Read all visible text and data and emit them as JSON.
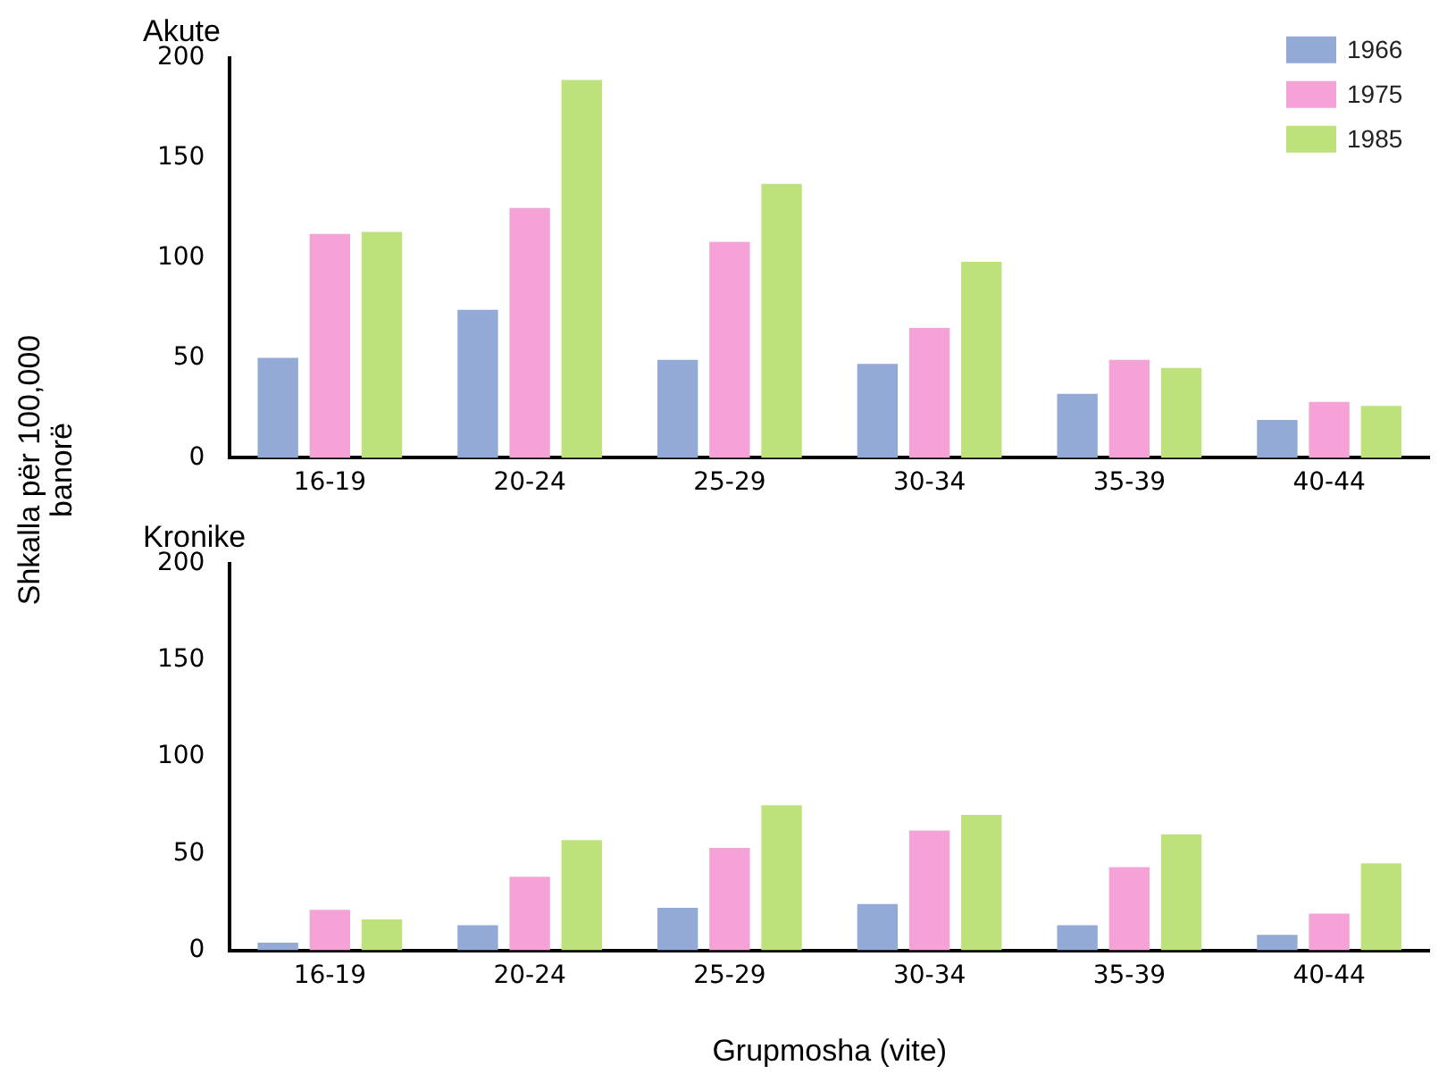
{
  "chart_data": [
    {
      "type": "bar",
      "title": "Akute",
      "ylabel": "Shkalla për 100,000 banorë",
      "categories": [
        "16-19",
        "20-24",
        "25-29",
        "30-34",
        "35-39",
        "40-44"
      ],
      "series": [
        {
          "name": "1966",
          "color": "#93a9d6",
          "values": [
            50,
            74,
            49,
            47,
            32,
            19
          ]
        },
        {
          "name": "1975",
          "color": "#f5a3d6",
          "values": [
            112,
            125,
            108,
            65,
            49,
            28
          ]
        },
        {
          "name": "1985",
          "color": "#bde27c",
          "values": [
            113,
            189,
            137,
            98,
            45,
            26
          ]
        }
      ],
      "ylim": [
        0,
        200
      ],
      "yticks": [
        0,
        50,
        100,
        150,
        200
      ],
      "grid": false,
      "legend": "top right"
    },
    {
      "type": "bar",
      "title": "Kronike",
      "xlabel": "Grupmosha (vite)",
      "categories": [
        "16-19",
        "20-24",
        "25-29",
        "30-34",
        "35-39",
        "40-44"
      ],
      "series": [
        {
          "color": "#93a9d6",
          "values": [
            4,
            13,
            22,
            24,
            13,
            8
          ]
        },
        {
          "color": "#f5a3d6",
          "values": [
            21,
            38,
            53,
            62,
            43,
            19
          ]
        },
        {
          "color": "#bde27c",
          "values": [
            16,
            57,
            75,
            70,
            60,
            45
          ]
        }
      ],
      "ylim": [
        0,
        200
      ],
      "yticks": [
        0,
        50,
        100,
        150,
        200
      ],
      "grid": false,
      "legend": false
    }
  ]
}
